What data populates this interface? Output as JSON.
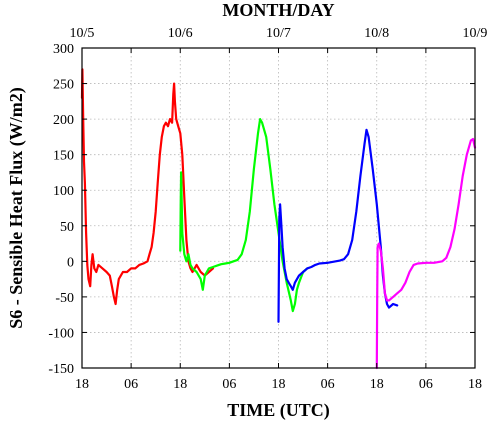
{
  "chart_data": {
    "type": "line",
    "title": "",
    "xlabel": "TIME (UTC)",
    "ylabel": "S6 - Sensible Heat Flux (W/m2)",
    "top_axis_label": "MONTH/DAY",
    "xlim": [
      0,
      96
    ],
    "x_unit": "hours since 10/5 18 UTC",
    "ylim": [
      -150,
      300
    ],
    "grid": true,
    "legend": "none",
    "x_ticks": [
      {
        "x": 0,
        "label": "18"
      },
      {
        "x": 12,
        "label": "06"
      },
      {
        "x": 24,
        "label": "18"
      },
      {
        "x": 36,
        "label": "06"
      },
      {
        "x": 48,
        "label": "18"
      },
      {
        "x": 60,
        "label": "06"
      },
      {
        "x": 72,
        "label": "18"
      },
      {
        "x": 84,
        "label": "06"
      },
      {
        "x": 96,
        "label": "18"
      }
    ],
    "top_ticks": [
      {
        "x": 0,
        "label": "10/5"
      },
      {
        "x": 24,
        "label": "10/6"
      },
      {
        "x": 48,
        "label": "10/7"
      },
      {
        "x": 72,
        "label": "10/8"
      },
      {
        "x": 96,
        "label": "10/9"
      }
    ],
    "y_ticks": [
      -150,
      -100,
      -50,
      0,
      50,
      100,
      150,
      200,
      250,
      300
    ],
    "series": [
      {
        "color": "#ff0000",
        "points": [
          [
            0.0,
            230
          ],
          [
            0.1,
            270
          ],
          [
            0.3,
            200
          ],
          [
            0.5,
            140
          ],
          [
            0.7,
            110
          ],
          [
            1.0,
            40
          ],
          [
            1.3,
            -5
          ],
          [
            1.6,
            -25
          ],
          [
            2.0,
            -35
          ],
          [
            2.3,
            -5
          ],
          [
            2.6,
            10
          ],
          [
            3.0,
            -10
          ],
          [
            3.5,
            -15
          ],
          [
            4.0,
            -5
          ],
          [
            5.0,
            -10
          ],
          [
            6.0,
            -15
          ],
          [
            6.8,
            -20
          ],
          [
            7.3,
            -35
          ],
          [
            7.8,
            -50
          ],
          [
            8.2,
            -60
          ],
          [
            8.6,
            -40
          ],
          [
            9.0,
            -25
          ],
          [
            10.0,
            -15
          ],
          [
            11.0,
            -15
          ],
          [
            12.0,
            -10
          ],
          [
            13.0,
            -10
          ],
          [
            14.0,
            -5
          ],
          [
            15.0,
            -3
          ],
          [
            16.0,
            0
          ],
          [
            16.5,
            10
          ],
          [
            17.0,
            20
          ],
          [
            17.5,
            40
          ],
          [
            18.0,
            70
          ],
          [
            18.5,
            110
          ],
          [
            19.0,
            150
          ],
          [
            19.5,
            175
          ],
          [
            20.0,
            190
          ],
          [
            20.5,
            195
          ],
          [
            21.0,
            190
          ],
          [
            21.5,
            200
          ],
          [
            22.0,
            195
          ],
          [
            22.3,
            235
          ],
          [
            22.5,
            250
          ],
          [
            22.7,
            225
          ],
          [
            23.0,
            200
          ],
          [
            23.5,
            190
          ],
          [
            24.0,
            180
          ],
          [
            24.5,
            150
          ],
          [
            25.0,
            90
          ],
          [
            25.5,
            30
          ],
          [
            26.0,
            0
          ],
          [
            26.5,
            -10
          ],
          [
            27.0,
            -15
          ],
          [
            28.0,
            -5
          ],
          [
            29.0,
            -15
          ],
          [
            30.0,
            -20
          ],
          [
            31.0,
            -15
          ],
          [
            32.0,
            -10
          ]
        ]
      },
      {
        "color": "#00ff00",
        "points": [
          [
            24.0,
            15
          ],
          [
            24.1,
            80
          ],
          [
            24.2,
            125
          ],
          [
            24.3,
            100
          ],
          [
            24.5,
            40
          ],
          [
            25.0,
            10
          ],
          [
            25.5,
            0
          ],
          [
            26.0,
            10
          ],
          [
            26.5,
            -5
          ],
          [
            27.0,
            -10
          ],
          [
            28.0,
            -15
          ],
          [
            29.0,
            -25
          ],
          [
            29.5,
            -40
          ],
          [
            30.0,
            -20
          ],
          [
            31.0,
            -10
          ],
          [
            32.0,
            -8
          ],
          [
            33.0,
            -6
          ],
          [
            34.0,
            -4
          ],
          [
            35.0,
            -3
          ],
          [
            36.0,
            -2
          ],
          [
            37.0,
            0
          ],
          [
            38.0,
            2
          ],
          [
            39.0,
            10
          ],
          [
            40.0,
            30
          ],
          [
            41.0,
            70
          ],
          [
            42.0,
            130
          ],
          [
            43.0,
            180
          ],
          [
            43.5,
            200
          ],
          [
            44.0,
            195
          ],
          [
            45.0,
            175
          ],
          [
            46.0,
            130
          ],
          [
            47.0,
            80
          ],
          [
            48.0,
            40
          ],
          [
            49.0,
            0
          ],
          [
            50.0,
            -30
          ],
          [
            51.0,
            -55
          ],
          [
            51.5,
            -70
          ],
          [
            52.0,
            -60
          ],
          [
            52.5,
            -40
          ],
          [
            53.0,
            -30
          ],
          [
            54.0,
            -15
          ],
          [
            55.0,
            -10
          ]
        ]
      },
      {
        "color": "#0000ff",
        "points": [
          [
            48.0,
            -85
          ],
          [
            48.2,
            60
          ],
          [
            48.4,
            80
          ],
          [
            48.7,
            50
          ],
          [
            49.0,
            20
          ],
          [
            49.5,
            -10
          ],
          [
            50.0,
            -25
          ],
          [
            50.5,
            -30
          ],
          [
            51.0,
            -35
          ],
          [
            51.5,
            -40
          ],
          [
            52.0,
            -30
          ],
          [
            53.0,
            -20
          ],
          [
            54.0,
            -15
          ],
          [
            55.0,
            -10
          ],
          [
            56.0,
            -8
          ],
          [
            57.0,
            -5
          ],
          [
            58.0,
            -3
          ],
          [
            60.0,
            -2
          ],
          [
            62.0,
            0
          ],
          [
            63.0,
            1
          ],
          [
            64.0,
            3
          ],
          [
            65.0,
            10
          ],
          [
            66.0,
            30
          ],
          [
            67.0,
            70
          ],
          [
            68.0,
            120
          ],
          [
            69.0,
            165
          ],
          [
            69.5,
            185
          ],
          [
            70.0,
            175
          ],
          [
            71.0,
            130
          ],
          [
            72.0,
            80
          ],
          [
            73.0,
            20
          ],
          [
            73.5,
            -20
          ],
          [
            74.0,
            -45
          ],
          [
            74.5,
            -60
          ],
          [
            75.0,
            -65
          ],
          [
            76.0,
            -60
          ],
          [
            77.0,
            -62
          ]
        ]
      },
      {
        "color": "#ff00ff",
        "points": [
          [
            72.0,
            -150
          ],
          [
            72.1,
            -50
          ],
          [
            72.2,
            20
          ],
          [
            72.5,
            25
          ],
          [
            73.0,
            15
          ],
          [
            73.5,
            -10
          ],
          [
            74.0,
            -45
          ],
          [
            74.5,
            -55
          ],
          [
            75.0,
            -55
          ],
          [
            76.0,
            -50
          ],
          [
            77.0,
            -45
          ],
          [
            78.0,
            -40
          ],
          [
            79.0,
            -30
          ],
          [
            80.0,
            -15
          ],
          [
            81.0,
            -5
          ],
          [
            82.0,
            -3
          ],
          [
            84.0,
            -2
          ],
          [
            86.0,
            -2
          ],
          [
            88.0,
            0
          ],
          [
            89.0,
            5
          ],
          [
            90.0,
            20
          ],
          [
            91.0,
            45
          ],
          [
            92.0,
            80
          ],
          [
            93.0,
            120
          ],
          [
            94.0,
            150
          ],
          [
            95.0,
            170
          ],
          [
            95.5,
            172
          ],
          [
            96.0,
            160
          ]
        ]
      }
    ]
  }
}
